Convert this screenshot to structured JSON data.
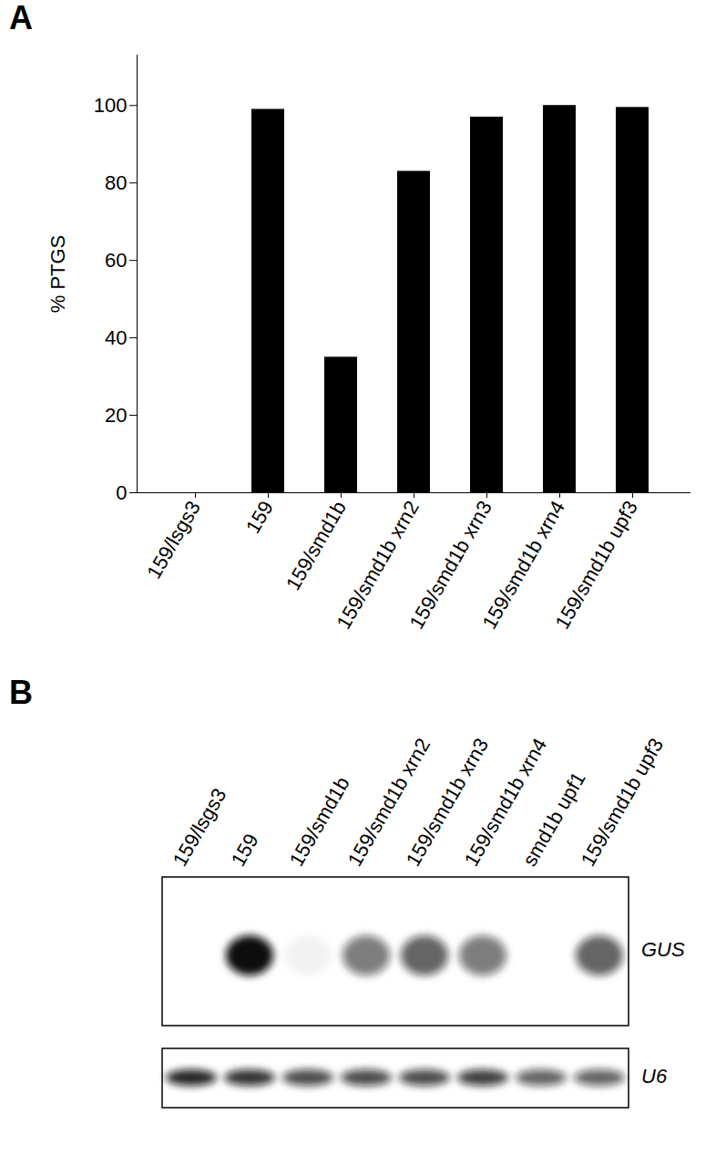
{
  "chart_data": {
    "type": "bar",
    "title": "A",
    "categories": [
      "159/lsgs3",
      "159",
      "159/smd1b",
      "159/smd1b xrn2",
      "159/smd1b xrn3",
      "159/smd1b xrn4",
      "159/smd1b upf3"
    ],
    "values": [
      0,
      99,
      35,
      83,
      97,
      100,
      99.5
    ],
    "color": "#000000",
    "y_label": "% PTGS",
    "ylim": [
      0,
      113
    ],
    "yticks": [
      0,
      20,
      40,
      60,
      80,
      100
    ]
  },
  "blot": {
    "title": "B",
    "lanes": [
      "159/lsgs3",
      "159",
      "159/smd1b",
      "159/smd1b xrn2",
      "159/smd1b xrn3",
      "159/smd1b xrn4",
      "smd1b upf1",
      "159/smd1b upf3"
    ],
    "rows": [
      {
        "label": "GUS",
        "intensity": [
          0,
          1,
          0.05,
          0.55,
          0.65,
          0.55,
          0,
          0.65
        ]
      },
      {
        "label": "U6",
        "intensity": [
          0.9,
          0.85,
          0.75,
          0.75,
          0.75,
          0.8,
          0.65,
          0.65
        ]
      }
    ]
  }
}
